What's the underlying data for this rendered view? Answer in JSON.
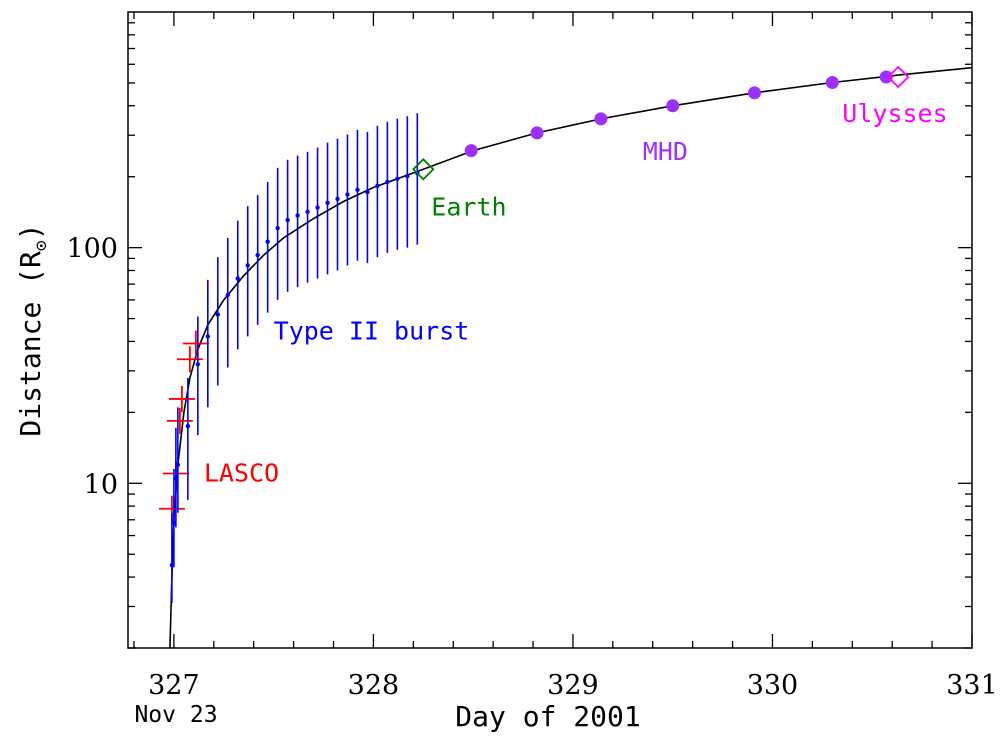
{
  "chart_data": {
    "type": "scatter",
    "xlabel": "Day of 2001",
    "ylabel": "Distance (R",
    "ylabel_sub": "⊙",
    "ylabel_close": ")",
    "x_note": "Nov 23",
    "xlim": [
      326.77,
      331.0
    ],
    "ylim": [
      2.0,
      1000
    ],
    "y_scale": "log",
    "grid": false,
    "x_ticks": [
      327,
      328,
      329,
      330,
      331
    ],
    "x_tick_labels": [
      "327",
      "328",
      "329",
      "330",
      "331"
    ],
    "y_ticks": [
      10,
      100
    ],
    "y_tick_labels": [
      "10",
      "100"
    ],
    "colors": {
      "lasco": "#ff0000",
      "type2": "#0000ff",
      "earth": "#008000",
      "mhd": "#9b30ff",
      "ulysses": "#ff00ff",
      "fit": "#000000"
    },
    "series": [
      {
        "name": "LASCO",
        "marker": "cross",
        "points": [
          {
            "x": 326.99,
            "y": 7.8
          },
          {
            "x": 327.01,
            "y": 11.0
          },
          {
            "x": 327.03,
            "y": 18.4
          },
          {
            "x": 327.04,
            "y": 22.8
          },
          {
            "x": 327.08,
            "y": 33.6
          },
          {
            "x": 327.11,
            "y": 39.2
          }
        ]
      },
      {
        "name": "Type II burst",
        "marker": "dot",
        "points": [
          {
            "x": 326.99,
            "y": 4.5,
            "ylo": 3.1,
            "yhi": 7.5
          },
          {
            "x": 327.0,
            "y": 6.8,
            "ylo": 4.4,
            "yhi": 11.5
          },
          {
            "x": 327.01,
            "y": 10.5,
            "ylo": 6.5,
            "yhi": 17.2
          },
          {
            "x": 327.02,
            "y": 12.0,
            "ylo": 7.5,
            "yhi": 21.0
          },
          {
            "x": 327.07,
            "y": 17.5,
            "ylo": 8.5,
            "yhi": 28.0
          },
          {
            "x": 327.12,
            "y": 32.0,
            "ylo": 16.0,
            "yhi": 51.0
          },
          {
            "x": 327.17,
            "y": 42.0,
            "ylo": 21.0,
            "yhi": 73.0
          },
          {
            "x": 327.22,
            "y": 52.0,
            "ylo": 26.0,
            "yhi": 91.0
          },
          {
            "x": 327.27,
            "y": 63.0,
            "ylo": 31.0,
            "yhi": 110.0
          },
          {
            "x": 327.32,
            "y": 74.0,
            "ylo": 37.0,
            "yhi": 130.0
          },
          {
            "x": 327.37,
            "y": 84.0,
            "ylo": 42.0,
            "yhi": 150.0
          },
          {
            "x": 327.42,
            "y": 93.0,
            "ylo": 47.0,
            "yhi": 167.0
          },
          {
            "x": 327.47,
            "y": 106.0,
            "ylo": 53.0,
            "yhi": 190.0
          },
          {
            "x": 327.52,
            "y": 121.0,
            "ylo": 60.0,
            "yhi": 218.0
          },
          {
            "x": 327.57,
            "y": 131.0,
            "ylo": 65.0,
            "yhi": 236.0
          },
          {
            "x": 327.62,
            "y": 137.0,
            "ylo": 68.0,
            "yhi": 246.0
          },
          {
            "x": 327.67,
            "y": 142.0,
            "ylo": 71.0,
            "yhi": 255.0
          },
          {
            "x": 327.72,
            "y": 148.0,
            "ylo": 74.0,
            "yhi": 266.0
          },
          {
            "x": 327.77,
            "y": 155.0,
            "ylo": 77.0,
            "yhi": 279.0
          },
          {
            "x": 327.82,
            "y": 161.0,
            "ylo": 80.0,
            "yhi": 290.0
          },
          {
            "x": 327.87,
            "y": 168.0,
            "ylo": 84.0,
            "yhi": 302.0
          },
          {
            "x": 327.92,
            "y": 176.0,
            "ylo": 88.0,
            "yhi": 316.0
          },
          {
            "x": 327.97,
            "y": 172.0,
            "ylo": 86.0,
            "yhi": 310.0
          },
          {
            "x": 328.02,
            "y": 183.0,
            "ylo": 91.0,
            "yhi": 329.0
          },
          {
            "x": 328.07,
            "y": 190.0,
            "ylo": 95.0,
            "yhi": 342.0
          },
          {
            "x": 328.12,
            "y": 196.0,
            "ylo": 98.0,
            "yhi": 353.0
          },
          {
            "x": 328.17,
            "y": 201.0,
            "ylo": 100.0,
            "yhi": 361.0
          },
          {
            "x": 328.22,
            "y": 207.0,
            "ylo": 103.0,
            "yhi": 372.0
          }
        ]
      },
      {
        "name": "Earth",
        "marker": "diamond",
        "points": [
          {
            "x": 328.25,
            "y": 215.0
          }
        ]
      },
      {
        "name": "MHD",
        "marker": "filled-circle",
        "points": [
          {
            "x": 328.49,
            "y": 258.0
          },
          {
            "x": 328.82,
            "y": 307.0
          },
          {
            "x": 329.14,
            "y": 352.0
          },
          {
            "x": 329.5,
            "y": 400.0
          },
          {
            "x": 329.91,
            "y": 454.0
          },
          {
            "x": 330.3,
            "y": 502.0
          },
          {
            "x": 330.57,
            "y": 530.0
          }
        ]
      },
      {
        "name": "Ulysses",
        "marker": "diamond",
        "points": [
          {
            "x": 330.63,
            "y": 530.0
          }
        ]
      }
    ],
    "fit_curve": [
      {
        "x": 326.98,
        "y": 2.0
      },
      {
        "x": 326.99,
        "y": 4.0
      },
      {
        "x": 327.0,
        "y": 7.0
      },
      {
        "x": 327.02,
        "y": 12.0
      },
      {
        "x": 327.05,
        "y": 20.0
      },
      {
        "x": 327.08,
        "y": 28.0
      },
      {
        "x": 327.12,
        "y": 37.0
      },
      {
        "x": 327.17,
        "y": 47.0
      },
      {
        "x": 327.25,
        "y": 60.0
      },
      {
        "x": 327.35,
        "y": 76.0
      },
      {
        "x": 327.45,
        "y": 93.0
      },
      {
        "x": 327.55,
        "y": 110.0
      },
      {
        "x": 327.7,
        "y": 133.0
      },
      {
        "x": 327.85,
        "y": 157.0
      },
      {
        "x": 328.0,
        "y": 180.0
      },
      {
        "x": 328.25,
        "y": 215.0
      },
      {
        "x": 328.5,
        "y": 258.0
      },
      {
        "x": 328.82,
        "y": 307.0
      },
      {
        "x": 329.14,
        "y": 352.0
      },
      {
        "x": 329.5,
        "y": 400.0
      },
      {
        "x": 329.91,
        "y": 454.0
      },
      {
        "x": 330.3,
        "y": 502.0
      },
      {
        "x": 330.63,
        "y": 540.0
      },
      {
        "x": 331.0,
        "y": 580.0
      }
    ],
    "annotations": [
      {
        "text": "LASCO",
        "series": "LASCO",
        "at": {
          "x": 327.15,
          "y": 11.0
        }
      },
      {
        "text": "Type II burst",
        "series": "Type II burst",
        "at": {
          "x": 327.5,
          "y": 44.0
        }
      },
      {
        "text": "Earth",
        "series": "Earth",
        "at": {
          "x": 328.29,
          "y": 148.0
        }
      },
      {
        "text": "MHD",
        "series": "MHD",
        "at": {
          "x": 329.35,
          "y": 255.0
        }
      },
      {
        "text": "Ulysses",
        "series": "Ulysses",
        "at": {
          "x": 330.35,
          "y": 370.0
        }
      }
    ]
  }
}
